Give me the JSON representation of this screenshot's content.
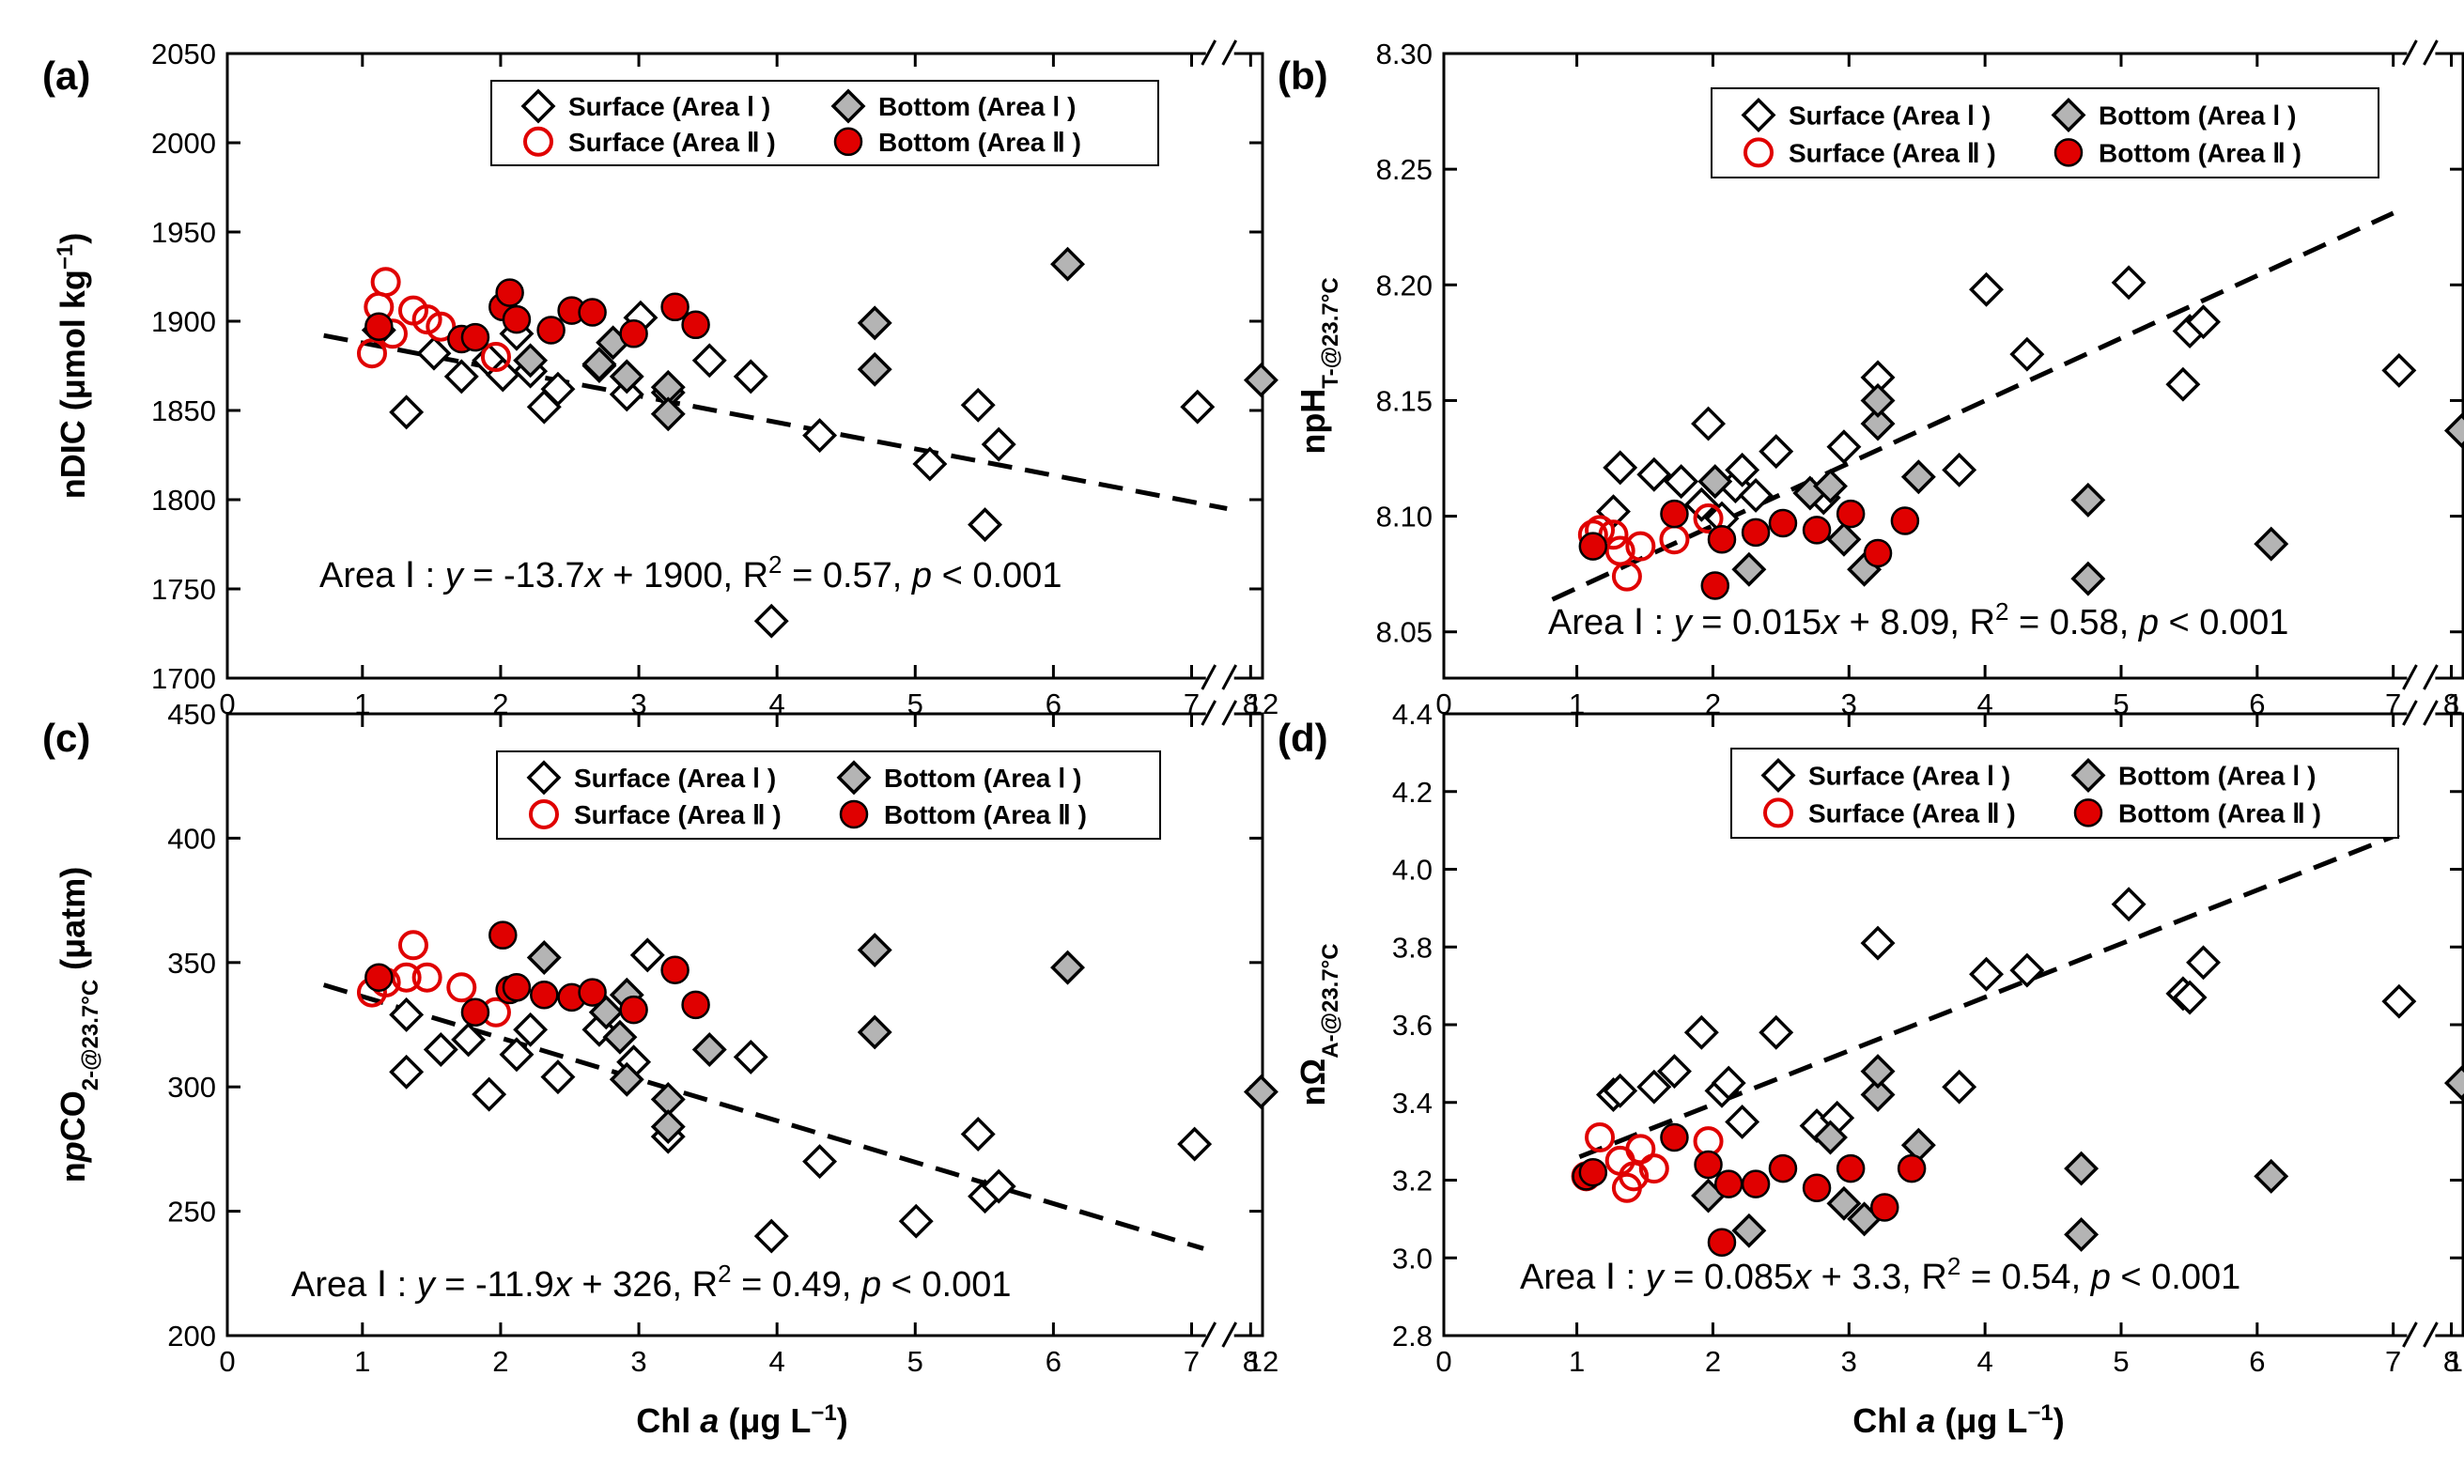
{
  "figure": {
    "xlabel_prefix": "Chl ",
    "xlabel_italic": "a",
    "xlabel_suffix": " (μg L",
    "xlabel_exp": "−1",
    "xlabel_close": ")",
    "x_ticks": [
      "0",
      "1",
      "2",
      "3",
      "4",
      "5",
      "6",
      "7",
      "8",
      "12"
    ],
    "area_tag": "Area Ⅰ :",
    "legend_labels": {
      "surf1": "Surface (Area Ⅰ )",
      "bot1": "Bottom (Area Ⅰ )",
      "surf2": "Surface (Area Ⅱ )",
      "bot2": "Bottom (Area Ⅱ )"
    },
    "colors": {
      "red": "#e00000",
      "gray": "#b4b4b4",
      "black": "#000000"
    }
  },
  "chart_data": [
    {
      "type": "scatter",
      "panel": "(a)",
      "ylabel_parts": [
        {
          "t": "n",
          "s": "normal"
        },
        {
          "t": "DIC (μmol kg",
          "s": "normal"
        },
        {
          "t": "−1",
          "s": "sup"
        },
        {
          "t": ")",
          "s": "normal"
        }
      ],
      "yticks": [
        "1700",
        "1750",
        "1800",
        "1850",
        "1900",
        "1950",
        "2000",
        "2050"
      ],
      "ylim": [
        1700,
        2050
      ],
      "xlim": [
        0,
        12
      ],
      "equation": {
        "a": "-13.7",
        "b": "1900",
        "r2": "0.57",
        "p": "< 0.001"
      },
      "regression": {
        "x": [
          0.7,
          7.6
        ],
        "y": [
          1892,
          1795
        ]
      },
      "series": [
        {
          "name": "Surface (Area I)",
          "marker": "open-diamond",
          "points": [
            [
              1.1,
              1895
            ],
            [
              1.3,
              1849
            ],
            [
              1.5,
              1882
            ],
            [
              1.7,
              1869
            ],
            [
              1.9,
              1878
            ],
            [
              2.0,
              1870
            ],
            [
              2.1,
              1893
            ],
            [
              2.2,
              1872
            ],
            [
              2.3,
              1852
            ],
            [
              2.4,
              1862
            ],
            [
              2.7,
              1875
            ],
            [
              2.9,
              1859
            ],
            [
              3.0,
              1902
            ],
            [
              3.2,
              1860
            ],
            [
              3.5,
              1878
            ],
            [
              3.8,
              1869
            ],
            [
              4.3,
              1836
            ],
            [
              5.1,
              1820
            ],
            [
              5.45,
              1853
            ],
            [
              5.5,
              1786
            ],
            [
              5.6,
              1831
            ],
            [
              3.95,
              1732
            ],
            [
              7.1,
              1852
            ]
          ]
        },
        {
          "name": "Bottom (Area I)",
          "marker": "gray-diamond",
          "points": [
            [
              2.2,
              1878
            ],
            [
              2.7,
              1876
            ],
            [
              2.8,
              1888
            ],
            [
              2.9,
              1869
            ],
            [
              3.2,
              1863
            ],
            [
              3.2,
              1848
            ],
            [
              4.7,
              1899
            ],
            [
              4.7,
              1873
            ],
            [
              6.1,
              1932
            ],
            [
              11.5,
              1867
            ]
          ]
        },
        {
          "name": "Surface (Area II)",
          "marker": "open-circle",
          "points": [
            [
              1.05,
              1882
            ],
            [
              1.1,
              1908
            ],
            [
              1.15,
              1922
            ],
            [
              1.2,
              1893
            ],
            [
              1.35,
              1906
            ],
            [
              1.45,
              1901
            ],
            [
              1.55,
              1897
            ],
            [
              1.95,
              1880
            ]
          ]
        },
        {
          "name": "Bottom (Area II)",
          "marker": "red-circle",
          "points": [
            [
              1.1,
              1897
            ],
            [
              1.7,
              1890
            ],
            [
              1.8,
              1891
            ],
            [
              2.0,
              1908
            ],
            [
              2.05,
              1916
            ],
            [
              2.1,
              1901
            ],
            [
              2.35,
              1895
            ],
            [
              2.5,
              1906
            ],
            [
              2.65,
              1905
            ],
            [
              2.95,
              1893
            ],
            [
              3.25,
              1908
            ],
            [
              3.4,
              1898
            ]
          ]
        }
      ]
    },
    {
      "type": "scatter",
      "panel": "(b)",
      "ylabel_parts": [
        {
          "t": "npH",
          "s": "normal"
        },
        {
          "t": "T-@23.7°C",
          "s": "sub"
        }
      ],
      "yticks": [
        "8.05",
        "8.10",
        "8.15",
        "8.20",
        "8.25",
        "8.30"
      ],
      "ylim": [
        8.03,
        8.3
      ],
      "xlim": [
        0,
        12
      ],
      "equation": {
        "a": "0.015",
        "b": "8.09",
        "r2": "0.58",
        "p": "< 0.001"
      },
      "regression": {
        "x": [
          0.8,
          7.0
        ],
        "y": [
          8.064,
          8.231
        ]
      },
      "series": [
        {
          "name": "Surface (Area I)",
          "marker": "open-diamond",
          "points": [
            [
              1.25,
              8.102
            ],
            [
              1.3,
              8.121
            ],
            [
              1.55,
              8.118
            ],
            [
              1.75,
              8.115
            ],
            [
              1.9,
              8.105
            ],
            [
              1.95,
              8.14
            ],
            [
              2.05,
              8.099
            ],
            [
              2.15,
              8.113
            ],
            [
              2.2,
              8.12
            ],
            [
              2.3,
              8.109
            ],
            [
              2.45,
              8.128
            ],
            [
              2.8,
              8.108
            ],
            [
              2.95,
              8.13
            ],
            [
              3.2,
              8.16
            ],
            [
              3.8,
              8.12
            ],
            [
              4.0,
              8.198
            ],
            [
              4.3,
              8.17
            ],
            [
              5.05,
              8.201
            ],
            [
              5.45,
              8.157
            ],
            [
              5.5,
              8.18
            ],
            [
              5.6,
              8.184
            ],
            [
              7.1,
              8.163
            ]
          ]
        },
        {
          "name": "Bottom (Area I)",
          "marker": "gray-diamond",
          "points": [
            [
              2.0,
              8.115
            ],
            [
              2.25,
              8.077
            ],
            [
              2.7,
              8.11
            ],
            [
              2.85,
              8.113
            ],
            [
              2.95,
              8.09
            ],
            [
              3.1,
              8.077
            ],
            [
              3.2,
              8.14
            ],
            [
              3.2,
              8.15
            ],
            [
              3.5,
              8.117
            ],
            [
              4.75,
              8.107
            ],
            [
              4.75,
              8.073
            ],
            [
              6.1,
              8.088
            ],
            [
              11.5,
              8.137
            ]
          ]
        },
        {
          "name": "Surface (Area II)",
          "marker": "open-circle",
          "points": [
            [
              1.1,
              8.092
            ],
            [
              1.15,
              8.094
            ],
            [
              1.25,
              8.092
            ],
            [
              1.3,
              8.085
            ],
            [
              1.35,
              8.074
            ],
            [
              1.45,
              8.087
            ],
            [
              1.7,
              8.09
            ],
            [
              1.95,
              8.099
            ]
          ]
        },
        {
          "name": "Bottom (Area II)",
          "marker": "red-circle",
          "points": [
            [
              1.1,
              8.087
            ],
            [
              1.7,
              8.101
            ],
            [
              2.0,
              8.07
            ],
            [
              2.05,
              8.09
            ],
            [
              2.3,
              8.093
            ],
            [
              2.5,
              8.097
            ],
            [
              2.75,
              8.094
            ],
            [
              3.0,
              8.101
            ],
            [
              3.2,
              8.084
            ],
            [
              3.4,
              8.098
            ]
          ]
        }
      ]
    },
    {
      "type": "scatter",
      "panel": "(c)",
      "ylabel_parts": [
        {
          "t": "n",
          "s": "normal"
        },
        {
          "t": "p",
          "s": "italic"
        },
        {
          "t": "CO",
          "s": "normal"
        },
        {
          "t": "2-@23.7°C",
          "s": "sub"
        },
        {
          "t": " (μatm)",
          "s": "normal"
        }
      ],
      "yticks": [
        "200",
        "250",
        "300",
        "350",
        "400",
        "450"
      ],
      "ylim": [
        200,
        450
      ],
      "xlim": [
        0,
        12
      ],
      "equation": {
        "a": "-11.9",
        "b": "326",
        "r2": "0.49",
        "p": "< 0.001"
      },
      "regression": {
        "x": [
          0.7,
          7.2
        ],
        "y": [
          341,
          235
        ]
      },
      "series": [
        {
          "name": "Surface (Area I)",
          "marker": "open-diamond",
          "points": [
            [
              1.3,
              306
            ],
            [
              1.3,
              329
            ],
            [
              1.55,
              315
            ],
            [
              1.75,
              319
            ],
            [
              1.9,
              297
            ],
            [
              2.1,
              313
            ],
            [
              2.2,
              323
            ],
            [
              2.4,
              304
            ],
            [
              2.7,
              323
            ],
            [
              2.95,
              310
            ],
            [
              3.05,
              353
            ],
            [
              3.2,
              280
            ],
            [
              3.8,
              312
            ],
            [
              3.95,
              240
            ],
            [
              4.3,
              270
            ],
            [
              5.0,
              246
            ],
            [
              5.45,
              281
            ],
            [
              5.5,
              256
            ],
            [
              5.6,
              260
            ],
            [
              7.05,
              277
            ]
          ]
        },
        {
          "name": "Bottom (Area I)",
          "marker": "gray-diamond",
          "points": [
            [
              2.3,
              352
            ],
            [
              2.75,
              330
            ],
            [
              2.85,
              320
            ],
            [
              2.9,
              337
            ],
            [
              2.9,
              303
            ],
            [
              3.2,
              295
            ],
            [
              3.2,
              284
            ],
            [
              3.5,
              315
            ],
            [
              4.7,
              355
            ],
            [
              4.7,
              322
            ],
            [
              6.1,
              348
            ],
            [
              11.5,
              298
            ]
          ]
        },
        {
          "name": "Surface (Area II)",
          "marker": "open-circle",
          "points": [
            [
              1.05,
              338
            ],
            [
              1.15,
              342
            ],
            [
              1.3,
              344
            ],
            [
              1.35,
              357
            ],
            [
              1.45,
              344
            ],
            [
              1.7,
              340
            ],
            [
              1.95,
              330
            ]
          ]
        },
        {
          "name": "Bottom (Area II)",
          "marker": "red-circle",
          "points": [
            [
              1.1,
              344
            ],
            [
              1.8,
              330
            ],
            [
              2.0,
              361
            ],
            [
              2.05,
              339
            ],
            [
              2.1,
              340
            ],
            [
              2.3,
              337
            ],
            [
              2.5,
              336
            ],
            [
              2.65,
              338
            ],
            [
              2.95,
              331
            ],
            [
              3.25,
              347
            ],
            [
              3.4,
              333
            ]
          ]
        }
      ]
    },
    {
      "type": "scatter",
      "panel": "(d)",
      "ylabel_parts": [
        {
          "t": "nΩ",
          "s": "normal"
        },
        {
          "t": "A-@23.7°C",
          "s": "sub"
        }
      ],
      "yticks": [
        "2.8",
        "3.0",
        "3.2",
        "3.4",
        "3.6",
        "3.8",
        "4.0",
        "4.2",
        "4.4"
      ],
      "ylim": [
        2.8,
        4.4
      ],
      "xlim": [
        0,
        12
      ],
      "equation": {
        "a": "0.085",
        "b": "3.3",
        "r2": "0.54",
        "p": "< 0.001"
      },
      "regression": {
        "x": [
          1.0,
          7.1
        ],
        "y": [
          3.26,
          4.09
        ]
      },
      "series": [
        {
          "name": "Surface (Area I)",
          "marker": "open-diamond",
          "points": [
            [
              1.25,
              3.42
            ],
            [
              1.3,
              3.43
            ],
            [
              1.55,
              3.44
            ],
            [
              1.7,
              3.48
            ],
            [
              1.9,
              3.58
            ],
            [
              2.05,
              3.43
            ],
            [
              2.1,
              3.45
            ],
            [
              2.2,
              3.35
            ],
            [
              2.45,
              3.58
            ],
            [
              2.75,
              3.34
            ],
            [
              2.9,
              3.36
            ],
            [
              3.2,
              3.81
            ],
            [
              3.8,
              3.44
            ],
            [
              4.0,
              3.73
            ],
            [
              4.3,
              3.74
            ],
            [
              5.05,
              3.91
            ],
            [
              5.45,
              3.68
            ],
            [
              5.5,
              3.67
            ],
            [
              5.6,
              3.76
            ],
            [
              7.1,
              3.66
            ]
          ]
        },
        {
          "name": "Bottom (Area I)",
          "marker": "gray-diamond",
          "points": [
            [
              1.95,
              3.16
            ],
            [
              2.25,
              3.07
            ],
            [
              2.85,
              3.31
            ],
            [
              2.95,
              3.14
            ],
            [
              3.1,
              3.1
            ],
            [
              3.2,
              3.42
            ],
            [
              3.2,
              3.48
            ],
            [
              3.5,
              3.29
            ],
            [
              4.7,
              3.23
            ],
            [
              4.7,
              3.06
            ],
            [
              6.1,
              3.21
            ],
            [
              11.5,
              3.45
            ]
          ]
        },
        {
          "name": "Surface (Area II)",
          "marker": "open-circle",
          "points": [
            [
              1.05,
              3.21
            ],
            [
              1.15,
              3.31
            ],
            [
              1.3,
              3.25
            ],
            [
              1.35,
              3.18
            ],
            [
              1.4,
              3.21
            ],
            [
              1.45,
              3.28
            ],
            [
              1.55,
              3.23
            ],
            [
              1.95,
              3.3
            ]
          ]
        },
        {
          "name": "Bottom (Area II)",
          "marker": "red-circle",
          "points": [
            [
              1.05,
              3.21
            ],
            [
              1.1,
              3.22
            ],
            [
              1.7,
              3.31
            ],
            [
              1.95,
              3.24
            ],
            [
              2.05,
              3.04
            ],
            [
              2.1,
              3.19
            ],
            [
              2.3,
              3.19
            ],
            [
              2.5,
              3.23
            ],
            [
              2.75,
              3.18
            ],
            [
              3.0,
              3.23
            ],
            [
              3.25,
              3.13
            ],
            [
              3.45,
              3.23
            ]
          ]
        }
      ]
    }
  ]
}
